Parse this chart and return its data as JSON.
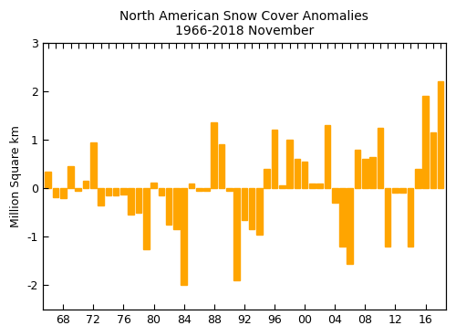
{
  "title": "North American Snow Cover Anomalies",
  "subtitle": "1966-2018 November",
  "ylabel": "Million Square km",
  "bar_color": "#FFA500",
  "ylim": [
    -2.5,
    3.0
  ],
  "yticks": [
    -2,
    -1,
    0,
    1,
    2,
    3
  ],
  "xticklabels": [
    "68",
    "72",
    "76",
    "80",
    "84",
    "88",
    "92",
    "96",
    "00",
    "04",
    "08",
    "12",
    "16"
  ],
  "years": [
    1966,
    1967,
    1968,
    1969,
    1970,
    1971,
    1972,
    1973,
    1974,
    1975,
    1976,
    1977,
    1978,
    1979,
    1980,
    1981,
    1982,
    1983,
    1984,
    1985,
    1986,
    1987,
    1988,
    1989,
    1990,
    1991,
    1992,
    1993,
    1994,
    1995,
    1996,
    1997,
    1998,
    1999,
    2000,
    2001,
    2002,
    2003,
    2004,
    2005,
    2006,
    2007,
    2008,
    2009,
    2010,
    2011,
    2012,
    2013,
    2014,
    2015,
    2016,
    2017,
    2018
  ],
  "values": [
    0.35,
    -0.18,
    -0.2,
    0.45,
    -0.05,
    0.15,
    0.95,
    -0.35,
    -0.15,
    -0.15,
    -0.12,
    -0.55,
    -0.5,
    -1.25,
    0.12,
    -0.15,
    -0.75,
    -0.85,
    -2.0,
    0.1,
    -0.05,
    -0.05,
    1.35,
    0.9,
    -0.05,
    -1.9,
    -0.65,
    -0.85,
    -0.95,
    0.4,
    1.2,
    0.05,
    1.0,
    0.6,
    0.55,
    0.1,
    0.1,
    1.3,
    -0.3,
    -1.2,
    -1.55,
    0.8,
    0.6,
    0.65,
    1.25,
    -1.2,
    -0.1,
    -0.1,
    -1.2,
    0.4,
    1.9,
    1.15,
    2.2
  ],
  "figsize": [
    5.0,
    3.68
  ],
  "dpi": 100
}
